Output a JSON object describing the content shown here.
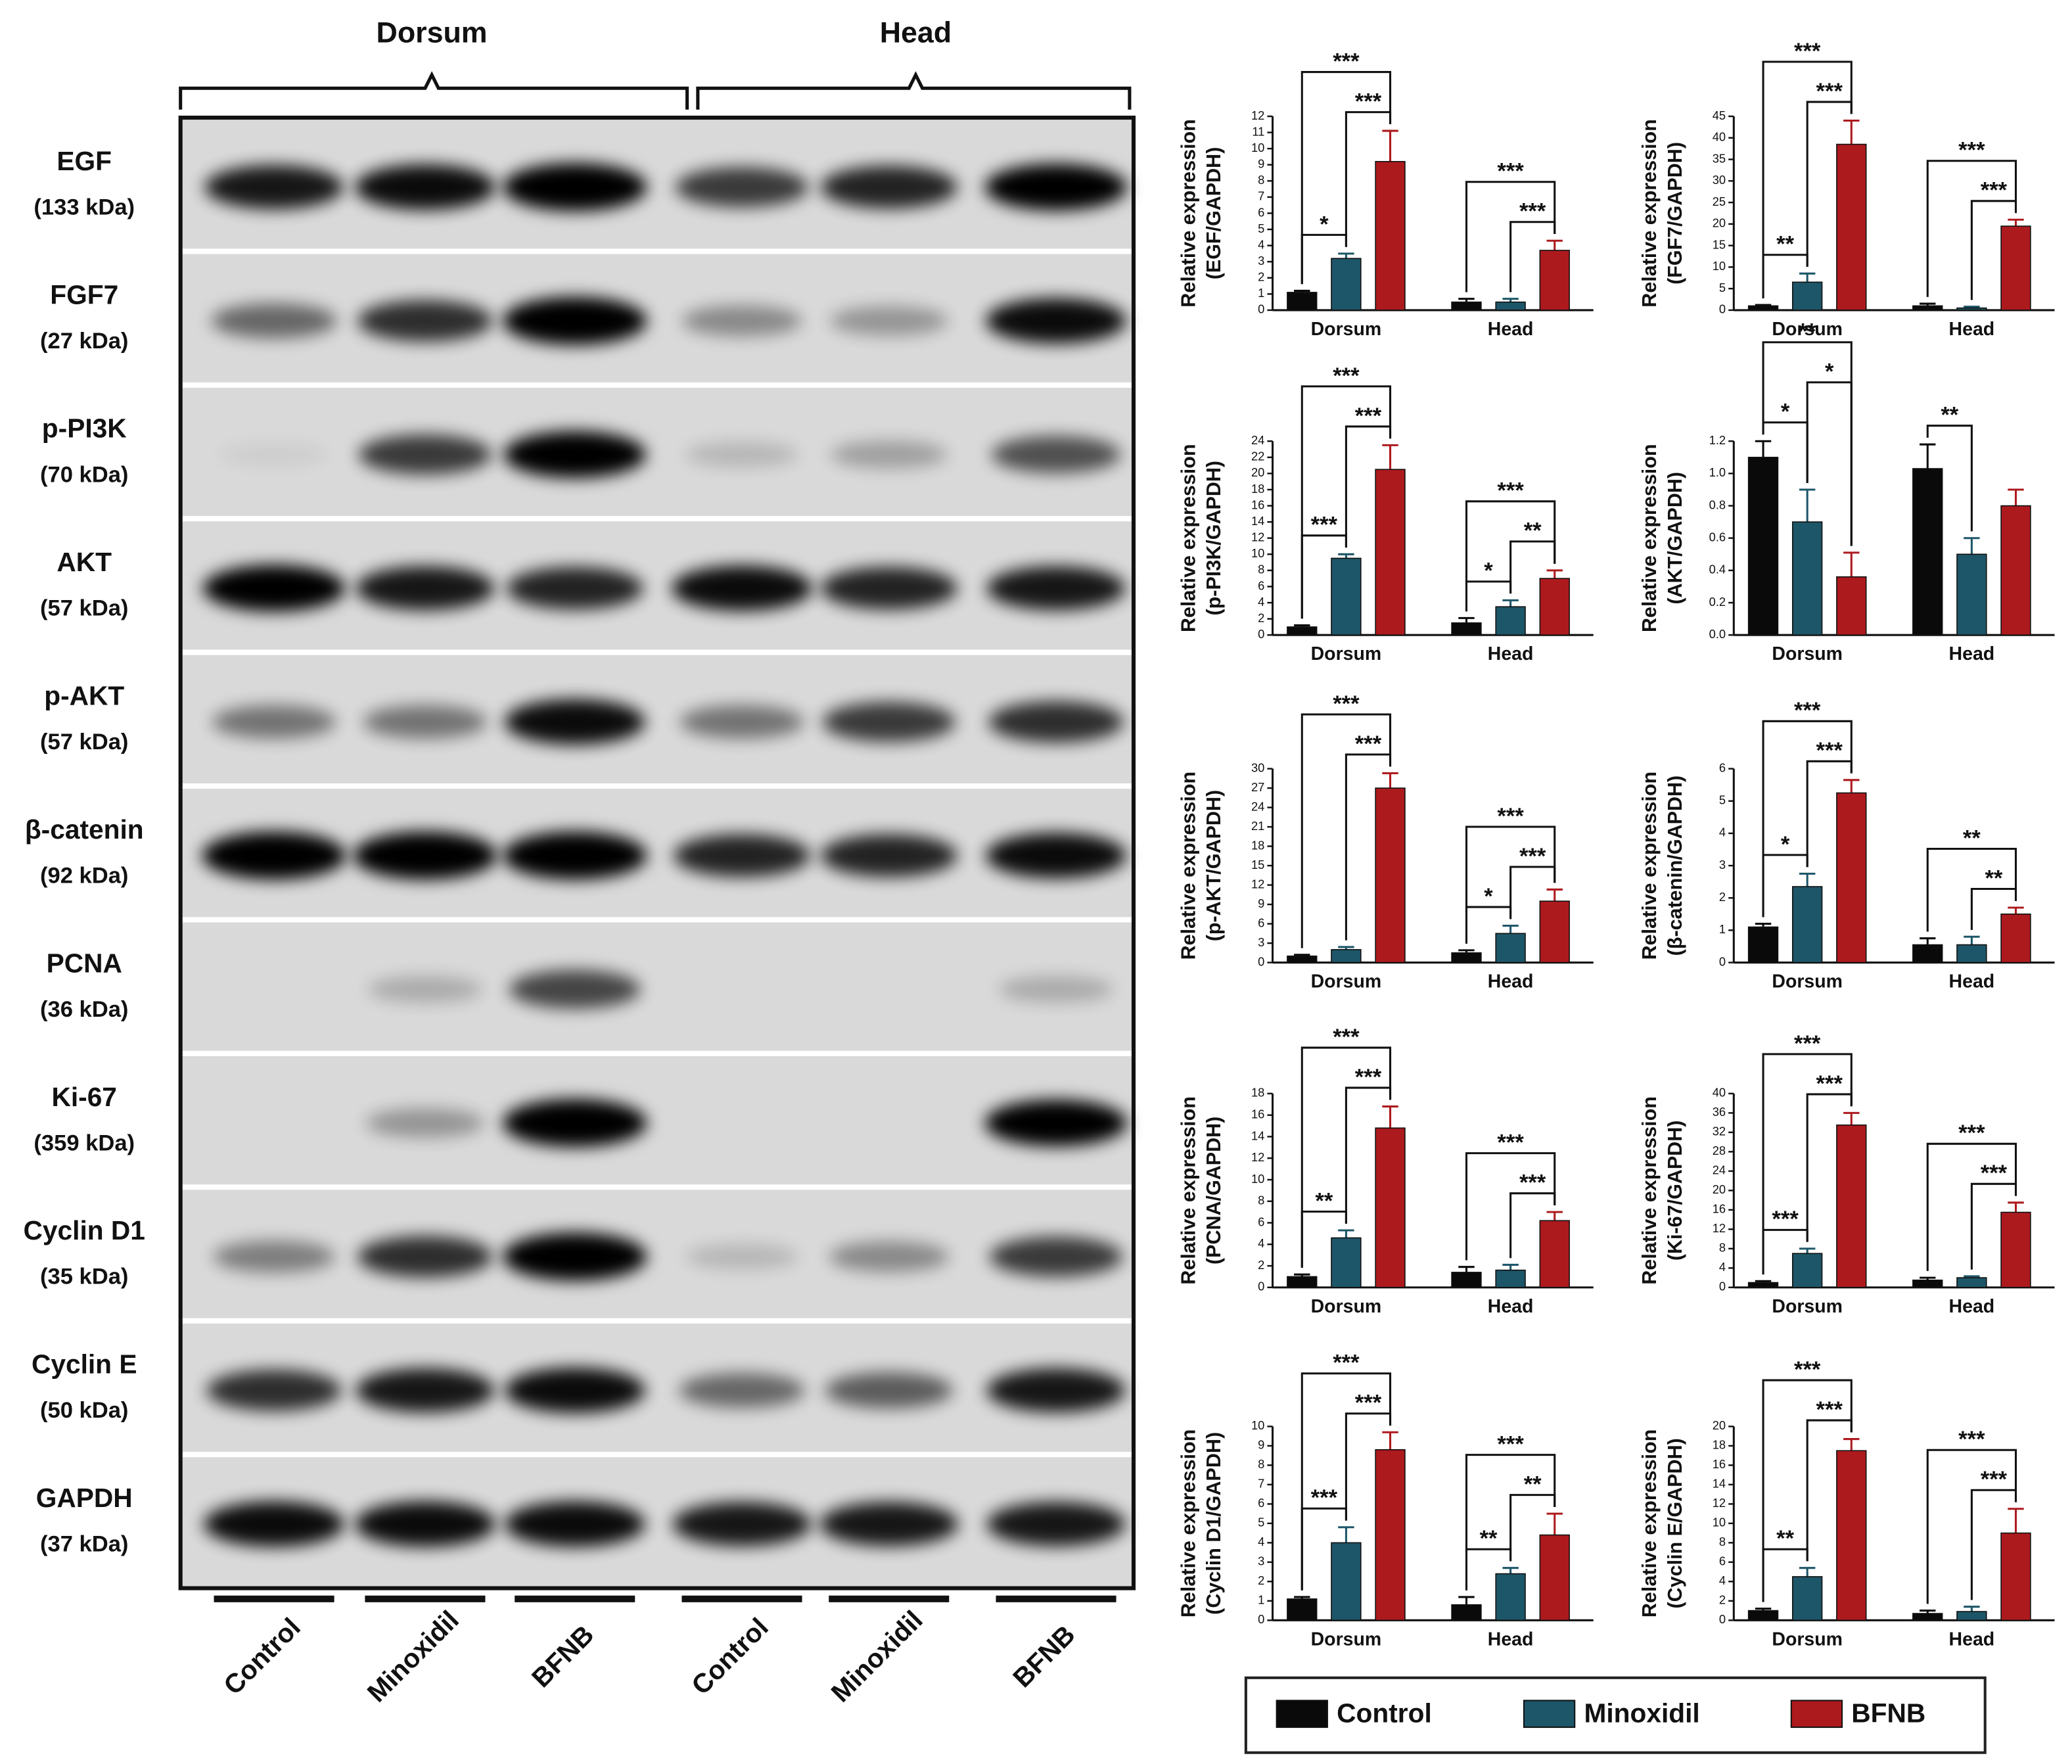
{
  "blot": {
    "groups": [
      "Dorsum",
      "Head"
    ],
    "proteins": [
      {
        "name": "EGF",
        "size": "(133 kDa)"
      },
      {
        "name": "FGF7",
        "size": "(27 kDa)"
      },
      {
        "name": "p-PI3K",
        "size": "(70 kDa)"
      },
      {
        "name": "AKT",
        "size": "(57 kDa)"
      },
      {
        "name": "p-AKT",
        "size": "(57 kDa)"
      },
      {
        "name": "β-catenin",
        "size": "(92 kDa)"
      },
      {
        "name": "PCNA",
        "size": "(36 kDa)"
      },
      {
        "name": "Ki-67",
        "size": "(359 kDa)"
      },
      {
        "name": "Cyclin D1",
        "size": "(35 kDa)"
      },
      {
        "name": "Cyclin E",
        "size": "(50 kDa)"
      },
      {
        "name": "GAPDH",
        "size": "(37 kDa)"
      }
    ],
    "lanes": [
      "Control",
      "Minoxidil",
      "BFNB",
      "Control",
      "Minoxidil",
      "BFNB"
    ]
  },
  "legend": [
    {
      "name": "Control",
      "color": "#0a0a0a"
    },
    {
      "name": "Minoxidil",
      "color": "#1d5668"
    },
    {
      "name": "BFNB",
      "color": "#ad1a1e"
    }
  ],
  "chart_data": [
    {
      "type": "bar",
      "ylabel": [
        "Relative expression",
        "(EGF/GAPDH)"
      ],
      "categories": [
        "Dorsum",
        "Head"
      ],
      "series": [
        {
          "values": [
            1.1,
            0.5
          ],
          "errors": [
            0.1,
            0.2
          ]
        },
        {
          "values": [
            3.2,
            0.5
          ],
          "errors": [
            0.3,
            0.2
          ]
        },
        {
          "values": [
            9.2,
            3.7
          ],
          "errors": [
            1.9,
            0.6
          ]
        }
      ],
      "ylim": [
        0,
        12
      ],
      "yticks": [
        0,
        1,
        2,
        3,
        4,
        5,
        6,
        7,
        8,
        9,
        10,
        11,
        12
      ],
      "pairs": [
        {
          "label": "*",
          "group": 0,
          "between": [
            0,
            1
          ]
        },
        {
          "label": "***",
          "group": 0,
          "between": [
            1,
            2
          ]
        },
        {
          "label": "***",
          "group": 0,
          "between": [
            0,
            2
          ]
        },
        {
          "label": "***",
          "group": 1,
          "between": [
            1,
            2
          ]
        },
        {
          "label": "***",
          "group": 1,
          "between": [
            0,
            2
          ]
        }
      ]
    },
    {
      "type": "bar",
      "ylabel": [
        "Relative expression",
        "(FGF7/GAPDH)"
      ],
      "categories": [
        "Dorsum",
        "Head"
      ],
      "series": [
        {
          "values": [
            1,
            1
          ],
          "errors": [
            0.2,
            0.5
          ]
        },
        {
          "values": [
            6.5,
            0.5
          ],
          "errors": [
            2,
            0.3
          ]
        },
        {
          "values": [
            38.5,
            19.5
          ],
          "errors": [
            5.5,
            1.5
          ]
        }
      ],
      "ylim": [
        0,
        45
      ],
      "yticks": [
        0,
        5,
        10,
        15,
        20,
        25,
        30,
        35,
        40,
        45
      ],
      "pairs": [
        {
          "label": "**",
          "group": 0,
          "between": [
            0,
            1
          ]
        },
        {
          "label": "***",
          "group": 0,
          "between": [
            1,
            2
          ]
        },
        {
          "label": "***",
          "group": 0,
          "between": [
            0,
            2
          ]
        },
        {
          "label": "***",
          "group": 1,
          "between": [
            1,
            2
          ]
        },
        {
          "label": "***",
          "group": 1,
          "between": [
            0,
            2
          ]
        }
      ]
    },
    {
      "type": "bar",
      "ylabel": [
        "Relative expression",
        "(p-PI3K/GAPDH)"
      ],
      "categories": [
        "Dorsum",
        "Head"
      ],
      "series": [
        {
          "values": [
            1,
            1.5
          ],
          "errors": [
            0.2,
            0.6
          ]
        },
        {
          "values": [
            9.5,
            3.5
          ],
          "errors": [
            0.5,
            0.8
          ]
        },
        {
          "values": [
            20.5,
            7
          ],
          "errors": [
            3,
            1
          ]
        }
      ],
      "ylim": [
        0,
        24
      ],
      "yticks": [
        0,
        2,
        4,
        6,
        8,
        10,
        12,
        14,
        16,
        18,
        20,
        22,
        24
      ],
      "pairs": [
        {
          "label": "***",
          "group": 0,
          "between": [
            0,
            1
          ]
        },
        {
          "label": "***",
          "group": 0,
          "between": [
            1,
            2
          ]
        },
        {
          "label": "***",
          "group": 0,
          "between": [
            0,
            2
          ]
        },
        {
          "label": "*",
          "group": 1,
          "between": [
            0,
            1
          ]
        },
        {
          "label": "**",
          "group": 1,
          "between": [
            1,
            2
          ]
        },
        {
          "label": "***",
          "group": 1,
          "between": [
            0,
            2
          ]
        }
      ]
    },
    {
      "type": "bar",
      "ylabel": [
        "Relative expression",
        "(AKT/GAPDH)"
      ],
      "categories": [
        "Dorsum",
        "Head"
      ],
      "series": [
        {
          "values": [
            1.1,
            1.03
          ],
          "errors": [
            0.1,
            0.15
          ]
        },
        {
          "values": [
            0.7,
            0.5
          ],
          "errors": [
            0.2,
            0.1
          ]
        },
        {
          "values": [
            0.36,
            0.8
          ],
          "errors": [
            0.15,
            0.1
          ]
        }
      ],
      "ylim": [
        0,
        1.2
      ],
      "yticks": [
        {
          "value": 0,
          "label": "0.0"
        },
        0.2,
        0.4,
        0.6,
        0.8,
        {
          "value": 1,
          "label": "1.0"
        },
        1.2
      ],
      "pairs": [
        {
          "label": "*",
          "group": 0,
          "between": [
            0,
            1
          ]
        },
        {
          "label": "*",
          "group": 0,
          "between": [
            1,
            2
          ]
        },
        {
          "label": "**",
          "group": 0,
          "between": [
            0,
            2
          ]
        },
        {
          "label": "**",
          "group": 1,
          "between": [
            0,
            1
          ]
        }
      ]
    },
    {
      "type": "bar",
      "ylabel": [
        "Relative expression",
        "(p-AKT/GAPDH)"
      ],
      "categories": [
        "Dorsum",
        "Head"
      ],
      "series": [
        {
          "values": [
            1,
            1.5
          ],
          "errors": [
            0.2,
            0.4
          ]
        },
        {
          "values": [
            2,
            4.5
          ],
          "errors": [
            0.4,
            1.2
          ]
        },
        {
          "values": [
            27,
            9.5
          ],
          "errors": [
            2.3,
            1.8
          ]
        }
      ],
      "ylim": [
        0,
        30
      ],
      "yticks": [
        0,
        3,
        6,
        9,
        12,
        15,
        18,
        21,
        24,
        27,
        30
      ],
      "pairs": [
        {
          "label": "***",
          "group": 0,
          "between": [
            1,
            2
          ]
        },
        {
          "label": "***",
          "group": 0,
          "between": [
            0,
            2
          ]
        },
        {
          "label": "*",
          "group": 1,
          "between": [
            0,
            1
          ]
        },
        {
          "label": "***",
          "group": 1,
          "between": [
            1,
            2
          ]
        },
        {
          "label": "***",
          "group": 1,
          "between": [
            0,
            2
          ]
        }
      ]
    },
    {
      "type": "bar",
      "ylabel": [
        "Relative expression",
        "(β-catenin/GAPDH)"
      ],
      "categories": [
        "Dorsum",
        "Head"
      ],
      "series": [
        {
          "values": [
            1.1,
            0.55
          ],
          "errors": [
            0.1,
            0.2
          ]
        },
        {
          "values": [
            2.35,
            0.55
          ],
          "errors": [
            0.4,
            0.25
          ]
        },
        {
          "values": [
            5.25,
            1.5
          ],
          "errors": [
            0.4,
            0.2
          ]
        }
      ],
      "ylim": [
        0,
        6
      ],
      "yticks": [
        0,
        1,
        2,
        3,
        4,
        5,
        6
      ],
      "pairs": [
        {
          "label": "*",
          "group": 0,
          "between": [
            0,
            1
          ]
        },
        {
          "label": "***",
          "group": 0,
          "between": [
            1,
            2
          ]
        },
        {
          "label": "***",
          "group": 0,
          "between": [
            0,
            2
          ]
        },
        {
          "label": "**",
          "group": 1,
          "between": [
            1,
            2
          ]
        },
        {
          "label": "**",
          "group": 1,
          "between": [
            0,
            2
          ]
        }
      ]
    },
    {
      "type": "bar",
      "ylabel": [
        "Relative expression",
        "(PCNA/GAPDH)"
      ],
      "categories": [
        "Dorsum",
        "Head"
      ],
      "series": [
        {
          "values": [
            1,
            1.4
          ],
          "errors": [
            0.2,
            0.5
          ]
        },
        {
          "values": [
            4.6,
            1.6
          ],
          "errors": [
            0.7,
            0.5
          ]
        },
        {
          "values": [
            14.8,
            6.2
          ],
          "errors": [
            2,
            0.8
          ]
        }
      ],
      "ylim": [
        0,
        18
      ],
      "yticks": [
        0,
        2,
        4,
        6,
        8,
        10,
        12,
        14,
        16,
        18
      ],
      "pairs": [
        {
          "label": "**",
          "group": 0,
          "between": [
            0,
            1
          ]
        },
        {
          "label": "***",
          "group": 0,
          "between": [
            1,
            2
          ]
        },
        {
          "label": "***",
          "group": 0,
          "between": [
            0,
            2
          ]
        },
        {
          "label": "***",
          "group": 1,
          "between": [
            1,
            2
          ]
        },
        {
          "label": "***",
          "group": 1,
          "between": [
            0,
            2
          ]
        }
      ]
    },
    {
      "type": "bar",
      "ylabel": [
        "Relative expression",
        "(Ki-67/GAPDH)"
      ],
      "categories": [
        "Dorsum",
        "Head"
      ],
      "series": [
        {
          "values": [
            1,
            1.5
          ],
          "errors": [
            0.3,
            0.5
          ]
        },
        {
          "values": [
            7,
            2
          ],
          "errors": [
            1,
            0.3
          ]
        },
        {
          "values": [
            33.5,
            15.5
          ],
          "errors": [
            2.5,
            2
          ]
        }
      ],
      "ylim": [
        0,
        40
      ],
      "yticks": [
        0,
        4,
        8,
        12,
        16,
        20,
        24,
        28,
        32,
        36,
        40
      ],
      "pairs": [
        {
          "label": "***",
          "group": 0,
          "between": [
            0,
            1
          ]
        },
        {
          "label": "***",
          "group": 0,
          "between": [
            1,
            2
          ]
        },
        {
          "label": "***",
          "group": 0,
          "between": [
            0,
            2
          ]
        },
        {
          "label": "***",
          "group": 1,
          "between": [
            1,
            2
          ]
        },
        {
          "label": "***",
          "group": 1,
          "between": [
            0,
            2
          ]
        }
      ]
    },
    {
      "type": "bar",
      "ylabel": [
        "Relative expression",
        "(Cyclin D1/GAPDH)"
      ],
      "categories": [
        "Dorsum",
        "Head"
      ],
      "series": [
        {
          "values": [
            1.1,
            0.8
          ],
          "errors": [
            0.1,
            0.4
          ]
        },
        {
          "values": [
            4,
            2.4
          ],
          "errors": [
            0.8,
            0.3
          ]
        },
        {
          "values": [
            8.8,
            4.4
          ],
          "errors": [
            0.9,
            1.1
          ]
        }
      ],
      "ylim": [
        0,
        10
      ],
      "yticks": [
        0,
        1,
        2,
        3,
        4,
        5,
        6,
        7,
        8,
        9,
        10
      ],
      "pairs": [
        {
          "label": "***",
          "group": 0,
          "between": [
            0,
            1
          ]
        },
        {
          "label": "***",
          "group": 0,
          "between": [
            1,
            2
          ]
        },
        {
          "label": "***",
          "group": 0,
          "between": [
            0,
            2
          ]
        },
        {
          "label": "**",
          "group": 1,
          "between": [
            0,
            1
          ]
        },
        {
          "label": "**",
          "group": 1,
          "between": [
            1,
            2
          ]
        },
        {
          "label": "***",
          "group": 1,
          "between": [
            0,
            2
          ]
        }
      ]
    },
    {
      "type": "bar",
      "ylabel": [
        "Relative expression",
        "(Cyclin E/GAPDH)"
      ],
      "categories": [
        "Dorsum",
        "Head"
      ],
      "series": [
        {
          "values": [
            1,
            0.7
          ],
          "errors": [
            0.2,
            0.3
          ]
        },
        {
          "values": [
            4.5,
            0.9
          ],
          "errors": [
            0.9,
            0.5
          ]
        },
        {
          "values": [
            17.5,
            9
          ],
          "errors": [
            1.2,
            2.5
          ]
        }
      ],
      "ylim": [
        0,
        20
      ],
      "yticks": [
        0,
        2,
        4,
        6,
        8,
        10,
        12,
        14,
        16,
        18,
        20
      ],
      "pairs": [
        {
          "label": "**",
          "group": 0,
          "between": [
            0,
            1
          ]
        },
        {
          "label": "***",
          "group": 0,
          "between": [
            1,
            2
          ]
        },
        {
          "label": "***",
          "group": 0,
          "between": [
            0,
            2
          ]
        },
        {
          "label": "***",
          "group": 1,
          "between": [
            1,
            2
          ]
        },
        {
          "label": "***",
          "group": 1,
          "between": [
            0,
            2
          ]
        }
      ]
    }
  ]
}
